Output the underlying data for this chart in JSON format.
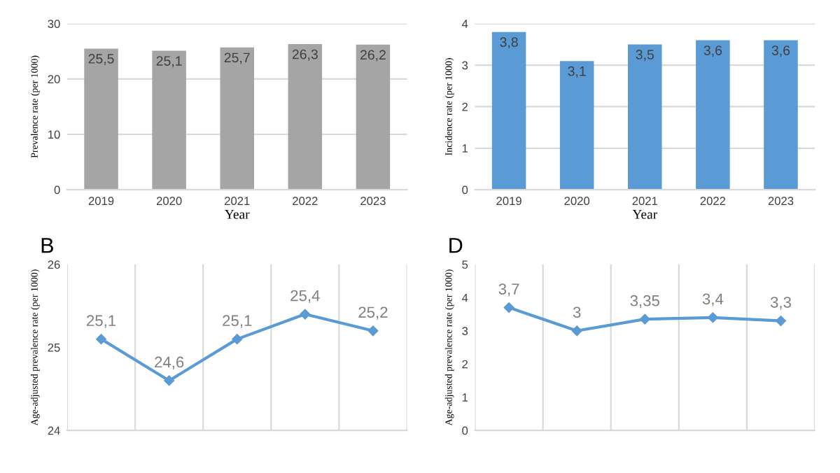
{
  "chart_data": [
    {
      "type": "bar",
      "xlabel": "Year",
      "ylabel": "Prevalence rate (per 1000)",
      "categories": [
        "2019",
        "2020",
        "2021",
        "2022",
        "2023"
      ],
      "values": [
        25.5,
        25.1,
        25.7,
        26.3,
        26.2
      ],
      "color": "#a5a5a5",
      "value_labels": [
        "25,5",
        "25,1",
        "25,7",
        "26,3",
        "26,2"
      ],
      "ylim": [
        0,
        30
      ],
      "yticks": [
        0,
        10,
        20,
        30
      ],
      "grid": "y"
    },
    {
      "type": "bar",
      "xlabel": "Year",
      "ylabel": "Incidence rate (per 1000)",
      "categories": [
        "2019",
        "2020",
        "2021",
        "2022",
        "2023"
      ],
      "values": [
        3.8,
        3.1,
        3.5,
        3.6,
        3.6
      ],
      "color": "#5b9bd5",
      "value_labels": [
        "3,8",
        "3,1",
        "3,5",
        "3,6",
        "3,6"
      ],
      "ylim": [
        0,
        4
      ],
      "yticks": [
        0,
        1,
        2,
        3,
        4
      ],
      "grid": "y"
    },
    {
      "type": "line",
      "title": "B",
      "ylabel": "Age-adjusted prevalence rate (per 1000)",
      "categories": [
        null,
        null,
        null,
        null,
        null
      ],
      "values": [
        25.1,
        24.6,
        25.1,
        25.4,
        25.2
      ],
      "color": "#5b9bd5",
      "marker": "diamond",
      "value_labels": [
        "25,1",
        "24,6",
        "25,1",
        "25,4",
        "25,2"
      ],
      "ylim": [
        24,
        26
      ],
      "yticks": [
        24,
        25,
        26
      ],
      "grid": "x"
    },
    {
      "type": "line",
      "title": "D",
      "ylabel": "Age-adjusted prevalence rate (per 1000)",
      "categories": [
        null,
        null,
        null,
        null,
        null
      ],
      "values": [
        3.7,
        3,
        3.35,
        3.4,
        3.3
      ],
      "color": "#5b9bd5",
      "marker": "diamond",
      "value_labels": [
        "3,7",
        "3",
        "3,35",
        "3,4",
        "3,3"
      ],
      "ylim": [
        0,
        5
      ],
      "yticks": [
        0,
        1,
        2,
        3,
        4,
        5
      ],
      "grid": "x"
    }
  ]
}
